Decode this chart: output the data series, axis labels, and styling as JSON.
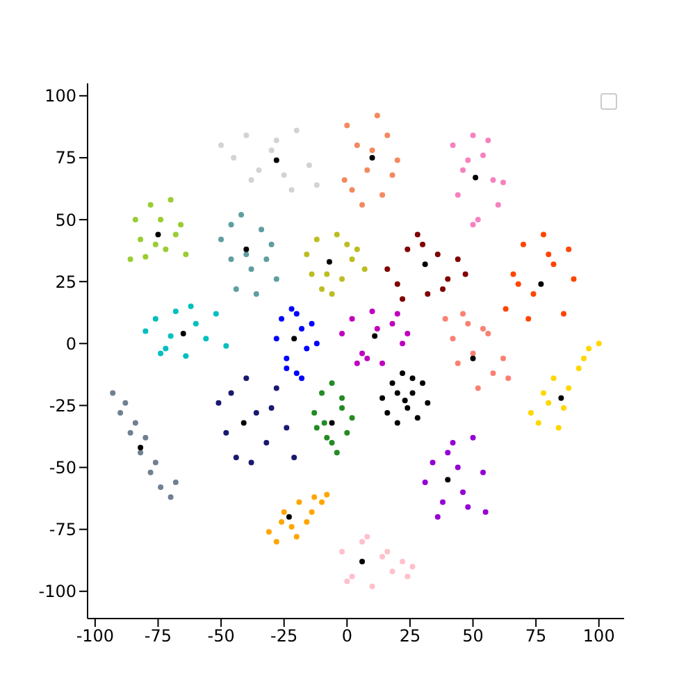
{
  "chart_data": {
    "type": "scatter",
    "xlim": [
      -103,
      110
    ],
    "ylim": [
      -111,
      105
    ],
    "xticks": [
      -100,
      -75,
      -50,
      -25,
      0,
      25,
      50,
      75,
      100
    ],
    "yticks": [
      -100,
      -75,
      -50,
      -25,
      0,
      25,
      50,
      75,
      100
    ],
    "grid": false,
    "marker": "circle",
    "series": [
      {
        "color": "#d3d3d3",
        "x": [
          -50,
          -45,
          -40,
          -35,
          -30,
          -25,
          -20,
          -15,
          -12,
          -22,
          -38,
          -28
        ],
        "values": [
          80,
          75,
          84,
          70,
          78,
          68,
          86,
          72,
          64,
          62,
          66,
          82
        ]
      },
      {
        "color": "#f4895f",
        "x": [
          0,
          4,
          8,
          12,
          16,
          20,
          2,
          14,
          6,
          18,
          10,
          -1
        ],
        "values": [
          88,
          80,
          70,
          92,
          84,
          74,
          62,
          60,
          56,
          68,
          78,
          66
        ]
      },
      {
        "color": "#f781bf",
        "x": [
          42,
          46,
          50,
          54,
          58,
          60,
          44,
          52,
          56,
          48,
          62,
          50
        ],
        "values": [
          80,
          70,
          84,
          76,
          66,
          56,
          60,
          50,
          82,
          74,
          65,
          48
        ]
      },
      {
        "color": "#9acd32",
        "x": [
          -86,
          -82,
          -78,
          -74,
          -70,
          -66,
          -64,
          -80,
          -72,
          -68,
          -84,
          -76
        ],
        "values": [
          34,
          42,
          56,
          50,
          58,
          48,
          36,
          35,
          38,
          44,
          50,
          40
        ]
      },
      {
        "color": "#5f9ea0",
        "x": [
          -50,
          -46,
          -42,
          -38,
          -34,
          -30,
          -28,
          -44,
          -36,
          -40,
          -32,
          -46
        ],
        "values": [
          42,
          48,
          52,
          30,
          46,
          40,
          26,
          22,
          20,
          36,
          34,
          34
        ]
      },
      {
        "color": "#bcbd22",
        "x": [
          -16,
          -12,
          -8,
          -4,
          0,
          4,
          7,
          -10,
          -2,
          2,
          -6,
          -14
        ],
        "values": [
          36,
          42,
          28,
          44,
          40,
          38,
          30,
          22,
          26,
          34,
          20,
          28
        ]
      },
      {
        "color": "#800000",
        "x": [
          16,
          20,
          24,
          28,
          32,
          36,
          40,
          44,
          47,
          22,
          30,
          38
        ],
        "values": [
          30,
          24,
          38,
          44,
          20,
          36,
          26,
          34,
          28,
          18,
          40,
          22
        ]
      },
      {
        "color": "#ff4500",
        "x": [
          63,
          66,
          70,
          74,
          78,
          82,
          86,
          90,
          72,
          80,
          68,
          88
        ],
        "values": [
          14,
          28,
          40,
          20,
          44,
          32,
          12,
          26,
          10,
          36,
          24,
          38
        ]
      },
      {
        "color": "#00bfbf",
        "x": [
          -80,
          -76,
          -72,
          -68,
          -64,
          -60,
          -56,
          -52,
          -48,
          -70,
          -62,
          -74
        ],
        "values": [
          5,
          10,
          -2,
          13,
          -5,
          8,
          2,
          12,
          -1,
          3,
          15,
          -4
        ]
      },
      {
        "color": "#0000ff",
        "x": [
          -28,
          -26,
          -24,
          -22,
          -20,
          -18,
          -16,
          -14,
          -12,
          -24,
          -18,
          -20
        ],
        "values": [
          2,
          10,
          -6,
          14,
          -12,
          6,
          -2,
          8,
          0,
          -10,
          -14,
          12
        ]
      },
      {
        "color": "#bf00bf",
        "x": [
          -2,
          2,
          6,
          10,
          14,
          18,
          22,
          24,
          4,
          12,
          20,
          8
        ],
        "values": [
          4,
          10,
          -4,
          13,
          -8,
          8,
          0,
          4,
          -8,
          6,
          12,
          -6
        ]
      },
      {
        "color": "#fa8072",
        "x": [
          39,
          42,
          46,
          50,
          54,
          58,
          62,
          64,
          44,
          52,
          56,
          48
        ],
        "values": [
          10,
          2,
          12,
          -4,
          6,
          -12,
          -6,
          -14,
          -8,
          -18,
          4,
          8
        ]
      },
      {
        "color": "#ffd700",
        "x": [
          73,
          76,
          80,
          84,
          88,
          92,
          96,
          100,
          78,
          86,
          94,
          82
        ],
        "values": [
          -28,
          -32,
          -24,
          -34,
          -18,
          -10,
          -2,
          0,
          -20,
          -26,
          -6,
          -14
        ]
      },
      {
        "color": "#708090",
        "x": [
          -93,
          -90,
          -86,
          -82,
          -78,
          -74,
          -70,
          -68,
          -88,
          -80,
          -76,
          -84
        ],
        "values": [
          -20,
          -28,
          -36,
          -44,
          -52,
          -58,
          -62,
          -56,
          -24,
          -38,
          -48,
          -32
        ]
      },
      {
        "color": "#191970",
        "x": [
          -51,
          -48,
          -44,
          -40,
          -36,
          -32,
          -28,
          -24,
          -21,
          -46,
          -38,
          -30
        ],
        "values": [
          -24,
          -36,
          -46,
          -14,
          -28,
          -40,
          -18,
          -34,
          -46,
          -20,
          -48,
          -26
        ]
      },
      {
        "color": "#228b22",
        "x": [
          -13,
          -10,
          -8,
          -6,
          -4,
          -2,
          0,
          2,
          -12,
          -6,
          -2,
          -9
        ],
        "values": [
          -28,
          -20,
          -38,
          -16,
          -44,
          -26,
          -36,
          -30,
          -34,
          -40,
          -22,
          -32
        ]
      },
      {
        "color": "#000000",
        "x": [
          14,
          16,
          18,
          20,
          22,
          24,
          26,
          28,
          30,
          32,
          20,
          26
        ],
        "values": [
          -22,
          -28,
          -16,
          -32,
          -12,
          -26,
          -20,
          -30,
          -16,
          -24,
          -20,
          -14
        ]
      },
      {
        "color": "#9400d3",
        "x": [
          31,
          34,
          38,
          42,
          46,
          50,
          54,
          55,
          36,
          44,
          48,
          40
        ],
        "values": [
          -56,
          -48,
          -64,
          -40,
          -60,
          -38,
          -52,
          -68,
          -70,
          -50,
          -66,
          -44
        ]
      },
      {
        "color": "#ffa500",
        "x": [
          -31,
          -28,
          -25,
          -22,
          -19,
          -16,
          -13,
          -10,
          -8,
          -26,
          -20,
          -14
        ],
        "values": [
          -76,
          -80,
          -68,
          -74,
          -64,
          -72,
          -62,
          -64,
          -61,
          -72,
          -78,
          -68
        ]
      },
      {
        "color": "#ffc0cb",
        "x": [
          -2,
          2,
          6,
          10,
          14,
          18,
          22,
          26,
          0,
          8,
          16,
          24
        ],
        "values": [
          -84,
          -94,
          -80,
          -98,
          -86,
          -92,
          -88,
          -90,
          -96,
          -78,
          -84,
          -94
        ]
      },
      {
        "color": "#000000",
        "x": [
          -28,
          10,
          51,
          -75,
          -40,
          -7,
          31,
          77,
          -65,
          -21,
          11,
          50,
          85,
          -82,
          -41,
          -6,
          23,
          40,
          -23,
          6
        ],
        "values": [
          74,
          75,
          67,
          44,
          38,
          33,
          32,
          24,
          4,
          2,
          3,
          -6,
          -22,
          -42,
          -32,
          -32,
          -23,
          -55,
          -70,
          -88
        ]
      }
    ]
  }
}
